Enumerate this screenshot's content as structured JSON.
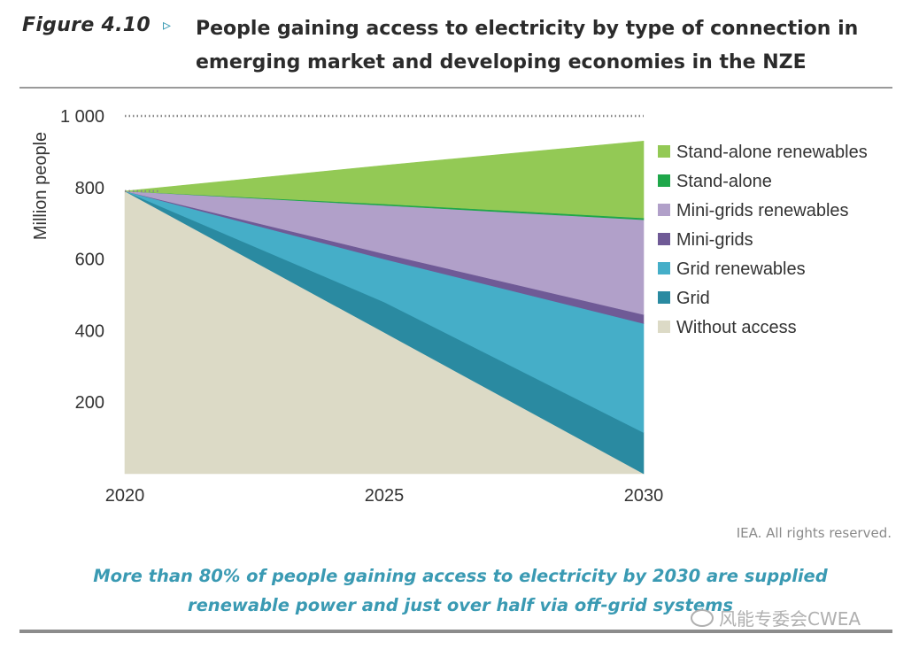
{
  "header": {
    "figure_label": "Figure 4.10",
    "arrow_glyph": "▹",
    "title_line1": "People gaining access to electricity by type of connection in",
    "title_line2": "emerging market and developing economies in the NZE"
  },
  "chart_data": {
    "type": "area",
    "stacking": "stacked",
    "title": "People gaining access to electricity by type of connection in emerging market and developing economies in the NZE",
    "xlabel": "",
    "ylabel": "Million people",
    "x": [
      2020,
      2025,
      2030
    ],
    "xticks": [
      "2020",
      "2025",
      "2030"
    ],
    "yticks": [
      200,
      400,
      600,
      800,
      1000
    ],
    "ytick_labels": [
      "200",
      "400",
      "600",
      "800",
      "1 000"
    ],
    "ylim": [
      0,
      1000
    ],
    "xlim": [
      2020,
      2030
    ],
    "reference_line": {
      "y": 1000,
      "style": "dotted"
    },
    "legend_position": "right",
    "series": [
      {
        "name": "Without access",
        "color": "#dcdac6",
        "values": [
          790,
          395,
          0
        ]
      },
      {
        "name": "Grid",
        "color": "#2a8aa1",
        "values": [
          0,
          85,
          115
        ]
      },
      {
        "name": "Grid renewables",
        "color": "#45aec8",
        "values": [
          0,
          120,
          305
        ]
      },
      {
        "name": "Mini-grids",
        "color": "#6f5a96",
        "values": [
          0,
          15,
          25
        ]
      },
      {
        "name": "Mini-grids renewables",
        "color": "#b1a0c9",
        "values": [
          0,
          135,
          265
        ]
      },
      {
        "name": "Stand-alone",
        "color": "#1fa74a",
        "values": [
          0,
          4,
          5
        ]
      },
      {
        "name": "Stand-alone renewables",
        "color": "#93c955",
        "values": [
          0,
          108,
          215
        ]
      }
    ],
    "legend_order": [
      "Stand-alone renewables",
      "Stand-alone",
      "Mini-grids renewables",
      "Mini-grids",
      "Grid renewables",
      "Grid",
      "Without access"
    ]
  },
  "footer": {
    "source": "IEA. All rights reserved.",
    "caption_line1": "More than 80% of people gaining access to electricity by 2030 are supplied",
    "caption_line2": "renewable power and just over half via off-grid systems",
    "watermark": "风能专委会CWEA"
  }
}
